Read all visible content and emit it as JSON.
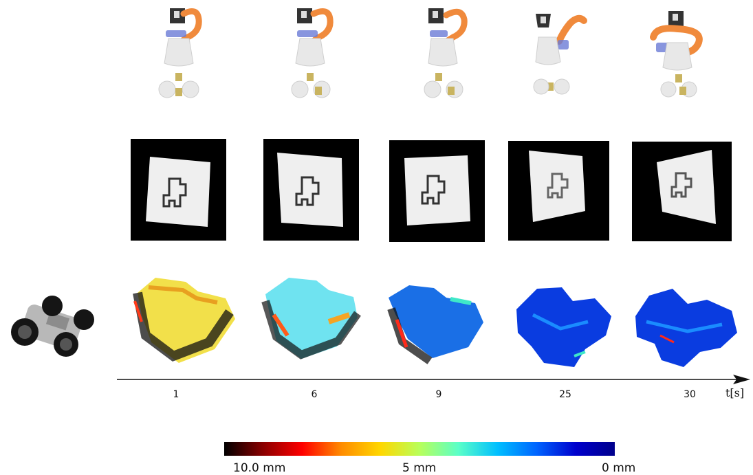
{
  "timeline": {
    "unit_label": "t[s]",
    "ticks": [
      "1",
      "6",
      "9",
      "25",
      "30"
    ]
  },
  "colorbar": {
    "labels": {
      "high": "10.0 mm",
      "mid": "5 mm",
      "low": "0 mm"
    },
    "stops": [
      "#000000",
      "#8b0000",
      "#ff0000",
      "#ff8c00",
      "#ffd700",
      "#b8ff5a",
      "#5affc8",
      "#00bfff",
      "#0064ff",
      "#0000cd",
      "#00008b"
    ]
  },
  "colors": {
    "robot_orange": "#f08a3c",
    "robot_body": "#e4e4e4",
    "depth_bg": "#000000",
    "depth_plane": "#efefef"
  },
  "icons": {
    "mobile_robot": "mobile-robot-icon",
    "arm_robot": "arm-robot-icon"
  }
}
